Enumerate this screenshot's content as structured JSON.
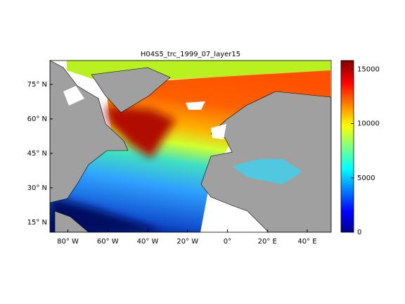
{
  "map": {
    "title": "H04S5_trc_1999_07_layer15",
    "lonlim": [
      -89,
      52
    ],
    "latlim": [
      10.7,
      85.4
    ],
    "lonticks": [
      {
        "value": -80,
        "label": "80° W"
      },
      {
        "value": -60,
        "label": "60° W"
      },
      {
        "value": -40,
        "label": "40° W"
      },
      {
        "value": -20,
        "label": "20° W"
      },
      {
        "value": 0,
        "label": "0°"
      },
      {
        "value": 20,
        "label": "20° E"
      },
      {
        "value": 40,
        "label": "40° E"
      }
    ],
    "latticks": [
      {
        "value": 15,
        "label": "15° N"
      },
      {
        "value": 30,
        "label": "30° N"
      },
      {
        "value": 45,
        "label": "45° N"
      },
      {
        "value": 60,
        "label": "60° N"
      },
      {
        "value": 75,
        "label": "75° N"
      }
    ],
    "colorbar": {
      "lim": [
        0,
        15800
      ],
      "ticks": [
        0,
        5000,
        10000,
        15000
      ]
    }
  }
}
